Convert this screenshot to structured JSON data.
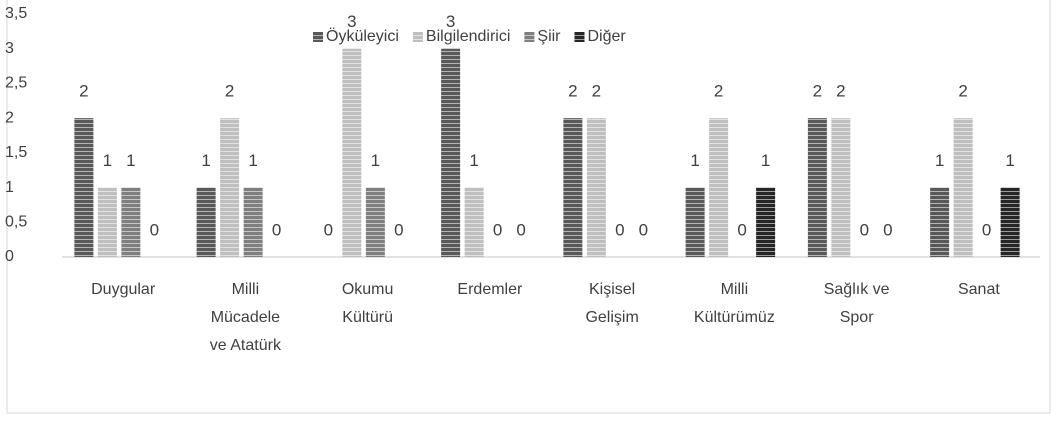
{
  "chart_data": {
    "type": "bar",
    "categories": [
      "Duygular",
      "Milli Mücadele ve Atatürk",
      "Okumu Kültürü",
      "Erdemler",
      "Kişisel Gelişim",
      "Milli Kültürümüz",
      "Sağlık ve Spor",
      "Sanat"
    ],
    "series": [
      {
        "name": "Öyküleyici",
        "color": "#595959",
        "values": [
          2,
          1,
          0,
          3,
          2,
          1,
          2,
          1
        ]
      },
      {
        "name": "Bilgilendirici",
        "color": "#bfbfbf",
        "values": [
          1,
          2,
          3,
          1,
          2,
          2,
          2,
          2
        ]
      },
      {
        "name": "Şiir",
        "color": "#7f7f7f",
        "values": [
          1,
          1,
          1,
          0,
          0,
          0,
          0,
          0
        ]
      },
      {
        "name": "Diğer",
        "color": "#262626",
        "values": [
          0,
          0,
          0,
          0,
          0,
          1,
          0,
          1
        ]
      }
    ],
    "ylim": [
      0,
      3.5
    ],
    "yticks": [
      0,
      {
        "value": 0.5,
        "label": "0,5"
      },
      1,
      {
        "value": 1.5,
        "label": "1,5"
      },
      2,
      {
        "value": 2.5,
        "label": "2,5"
      },
      3,
      {
        "value": 3.5,
        "label": "3,5"
      }
    ],
    "grid": false,
    "legend": "top"
  }
}
